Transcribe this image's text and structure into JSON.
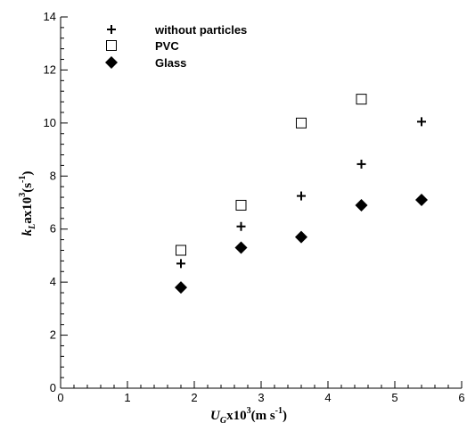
{
  "chart_data": {
    "type": "scatter",
    "x_axis": {
      "min": 0,
      "max": 6,
      "ticks": [
        "0",
        "1",
        "2",
        "3",
        "4",
        "5",
        "6"
      ],
      "title": {
        "base": "U",
        "sub": "G",
        "mid": "x10",
        "sup": "3",
        "unit": "(m s",
        "unit_sup": "-1",
        "close": ")"
      }
    },
    "y_axis": {
      "min": 0,
      "max": 14,
      "ticks": [
        "0",
        "2",
        "4",
        "6",
        "8",
        "10",
        "12",
        "14"
      ],
      "title": {
        "base": "k",
        "sub": "L",
        "mid": "ax10",
        "sup": "3",
        "unit": "(s",
        "unit_sup": "-1",
        "close": ")"
      }
    },
    "series": [
      {
        "name": "without particles",
        "marker": "plus",
        "x": [
          1.8,
          2.7,
          3.6,
          4.5,
          5.4
        ],
        "y": [
          4.7,
          6.1,
          7.25,
          8.45,
          10.05
        ]
      },
      {
        "name": "PVC",
        "marker": "open-square",
        "x": [
          1.8,
          2.7,
          3.6,
          4.5
        ],
        "y": [
          5.2,
          6.9,
          10.0,
          10.9
        ]
      },
      {
        "name": "Glass",
        "marker": "filled-diamond",
        "x": [
          1.8,
          2.7,
          3.6,
          4.5,
          5.4
        ],
        "y": [
          3.8,
          5.3,
          5.7,
          6.9,
          7.1
        ]
      }
    ],
    "legend_position": "top-left",
    "grid": false
  }
}
